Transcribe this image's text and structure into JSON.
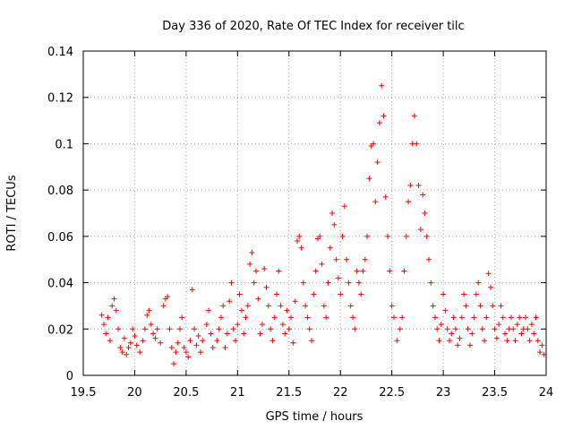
{
  "chart_data": {
    "type": "scatter",
    "title": "Day 336 of 2020, Rate Of TEC Index for receiver tilc",
    "xlabel": "GPS time / hours",
    "ylabel": "ROTI / TECUs",
    "xlim": [
      19.5,
      24
    ],
    "ylim": [
      0,
      0.14
    ],
    "xticks": [
      "19.5",
      "20",
      "20.5",
      "21",
      "21.5",
      "22",
      "22.5",
      "23",
      "23.5",
      "24"
    ],
    "yticks": [
      "0",
      "0.02",
      "0.04",
      "0.06",
      "0.08",
      "0.1",
      "0.12",
      "0.14"
    ],
    "grid": true,
    "marker": "+",
    "color": "#ff0000",
    "series": [
      {
        "name": "ROTI",
        "points": [
          [
            19.68,
            0.026
          ],
          [
            19.7,
            0.022
          ],
          [
            19.72,
            0.018
          ],
          [
            19.74,
            0.025
          ],
          [
            19.76,
            0.015
          ],
          [
            19.78,
            0.03
          ],
          [
            19.8,
            0.033
          ],
          [
            19.82,
            0.028
          ],
          [
            19.84,
            0.02
          ],
          [
            19.86,
            0.012
          ],
          [
            19.88,
            0.01
          ],
          [
            19.9,
            0.016
          ],
          [
            19.92,
            0.009
          ],
          [
            19.94,
            0.012
          ],
          [
            19.96,
            0.014
          ],
          [
            19.98,
            0.02
          ],
          [
            20.0,
            0.017
          ],
          [
            20.02,
            0.013
          ],
          [
            20.05,
            0.01
          ],
          [
            20.08,
            0.015
          ],
          [
            20.1,
            0.02
          ],
          [
            20.12,
            0.026
          ],
          [
            20.14,
            0.028
          ],
          [
            20.16,
            0.022
          ],
          [
            20.18,
            0.018
          ],
          [
            20.2,
            0.016
          ],
          [
            20.22,
            0.02
          ],
          [
            20.25,
            0.014
          ],
          [
            20.28,
            0.03
          ],
          [
            20.3,
            0.033
          ],
          [
            20.32,
            0.034
          ],
          [
            20.34,
            0.02
          ],
          [
            20.36,
            0.012
          ],
          [
            20.38,
            0.005
          ],
          [
            20.4,
            0.01
          ],
          [
            20.42,
            0.014
          ],
          [
            20.44,
            0.02
          ],
          [
            20.46,
            0.025
          ],
          [
            20.48,
            0.012
          ],
          [
            20.5,
            0.01
          ],
          [
            20.52,
            0.008
          ],
          [
            20.54,
            0.015
          ],
          [
            20.56,
            0.037
          ],
          [
            20.58,
            0.02
          ],
          [
            20.6,
            0.013
          ],
          [
            20.62,
            0.017
          ],
          [
            20.64,
            0.01
          ],
          [
            20.66,
            0.015
          ],
          [
            20.7,
            0.022
          ],
          [
            20.72,
            0.028
          ],
          [
            20.74,
            0.018
          ],
          [
            20.76,
            0.012
          ],
          [
            20.8,
            0.015
          ],
          [
            20.82,
            0.02
          ],
          [
            20.84,
            0.025
          ],
          [
            20.86,
            0.03
          ],
          [
            20.88,
            0.012
          ],
          [
            20.9,
            0.018
          ],
          [
            20.92,
            0.032
          ],
          [
            20.94,
            0.04
          ],
          [
            20.96,
            0.02
          ],
          [
            20.98,
            0.015
          ],
          [
            21.0,
            0.022
          ],
          [
            21.02,
            0.035
          ],
          [
            21.04,
            0.028
          ],
          [
            21.06,
            0.018
          ],
          [
            21.08,
            0.025
          ],
          [
            21.1,
            0.03
          ],
          [
            21.12,
            0.048
          ],
          [
            21.14,
            0.053
          ],
          [
            21.16,
            0.04
          ],
          [
            21.18,
            0.045
          ],
          [
            21.2,
            0.033
          ],
          [
            21.22,
            0.018
          ],
          [
            21.24,
            0.022
          ],
          [
            21.26,
            0.046
          ],
          [
            21.28,
            0.038
          ],
          [
            21.3,
            0.03
          ],
          [
            21.32,
            0.02
          ],
          [
            21.34,
            0.015
          ],
          [
            21.36,
            0.025
          ],
          [
            21.38,
            0.035
          ],
          [
            21.4,
            0.045
          ],
          [
            21.42,
            0.03
          ],
          [
            21.44,
            0.022
          ],
          [
            21.46,
            0.018
          ],
          [
            21.48,
            0.028
          ],
          [
            21.5,
            0.02
          ],
          [
            21.52,
            0.025
          ],
          [
            21.54,
            0.014
          ],
          [
            21.56,
            0.032
          ],
          [
            21.58,
            0.058
          ],
          [
            21.6,
            0.06
          ],
          [
            21.62,
            0.055
          ],
          [
            21.64,
            0.04
          ],
          [
            21.66,
            0.03
          ],
          [
            21.68,
            0.025
          ],
          [
            21.7,
            0.02
          ],
          [
            21.72,
            0.015
          ],
          [
            21.74,
            0.035
          ],
          [
            21.76,
            0.045
          ],
          [
            21.78,
            0.059
          ],
          [
            21.8,
            0.06
          ],
          [
            21.82,
            0.048
          ],
          [
            21.84,
            0.03
          ],
          [
            21.86,
            0.025
          ],
          [
            21.88,
            0.04
          ],
          [
            21.9,
            0.055
          ],
          [
            21.92,
            0.07
          ],
          [
            21.94,
            0.065
          ],
          [
            21.96,
            0.05
          ],
          [
            21.98,
            0.042
          ],
          [
            22.0,
            0.035
          ],
          [
            22.02,
            0.06
          ],
          [
            22.04,
            0.073
          ],
          [
            22.06,
            0.05
          ],
          [
            22.08,
            0.04
          ],
          [
            22.1,
            0.03
          ],
          [
            22.12,
            0.025
          ],
          [
            22.14,
            0.02
          ],
          [
            22.16,
            0.045
          ],
          [
            22.18,
            0.04
          ],
          [
            22.2,
            0.035
          ],
          [
            22.22,
            0.045
          ],
          [
            22.24,
            0.05
          ],
          [
            22.26,
            0.06
          ],
          [
            22.28,
            0.085
          ],
          [
            22.3,
            0.099
          ],
          [
            22.32,
            0.1
          ],
          [
            22.34,
            0.075
          ],
          [
            22.36,
            0.092
          ],
          [
            22.38,
            0.109
          ],
          [
            22.4,
            0.125
          ],
          [
            22.42,
            0.112
          ],
          [
            22.44,
            0.077
          ],
          [
            22.46,
            0.06
          ],
          [
            22.48,
            0.045
          ],
          [
            22.5,
            0.03
          ],
          [
            22.52,
            0.025
          ],
          [
            22.55,
            0.015
          ],
          [
            22.58,
            0.02
          ],
          [
            22.6,
            0.025
          ],
          [
            22.62,
            0.045
          ],
          [
            22.64,
            0.06
          ],
          [
            22.66,
            0.075
          ],
          [
            22.68,
            0.082
          ],
          [
            22.7,
            0.1
          ],
          [
            22.72,
            0.112
          ],
          [
            22.74,
            0.1
          ],
          [
            22.76,
            0.082
          ],
          [
            22.78,
            0.063
          ],
          [
            22.8,
            0.078
          ],
          [
            22.82,
            0.07
          ],
          [
            22.84,
            0.06
          ],
          [
            22.86,
            0.05
          ],
          [
            22.88,
            0.04
          ],
          [
            22.9,
            0.03
          ],
          [
            22.92,
            0.025
          ],
          [
            22.94,
            0.02
          ],
          [
            22.96,
            0.015
          ],
          [
            22.98,
            0.022
          ],
          [
            23.0,
            0.035
          ],
          [
            23.02,
            0.028
          ],
          [
            23.04,
            0.02
          ],
          [
            23.06,
            0.015
          ],
          [
            23.08,
            0.018
          ],
          [
            23.1,
            0.025
          ],
          [
            23.12,
            0.02
          ],
          [
            23.14,
            0.013
          ],
          [
            23.16,
            0.016
          ],
          [
            23.18,
            0.025
          ],
          [
            23.2,
            0.035
          ],
          [
            23.22,
            0.03
          ],
          [
            23.24,
            0.02
          ],
          [
            23.26,
            0.013
          ],
          [
            23.28,
            0.018
          ],
          [
            23.3,
            0.025
          ],
          [
            23.32,
            0.035
          ],
          [
            23.34,
            0.04
          ],
          [
            23.36,
            0.03
          ],
          [
            23.38,
            0.02
          ],
          [
            23.4,
            0.015
          ],
          [
            23.42,
            0.025
          ],
          [
            23.44,
            0.044
          ],
          [
            23.46,
            0.038
          ],
          [
            23.48,
            0.03
          ],
          [
            23.5,
            0.02
          ],
          [
            23.52,
            0.016
          ],
          [
            23.54,
            0.022
          ],
          [
            23.56,
            0.03
          ],
          [
            23.58,
            0.025
          ],
          [
            23.6,
            0.018
          ],
          [
            23.62,
            0.015
          ],
          [
            23.64,
            0.02
          ],
          [
            23.66,
            0.025
          ],
          [
            23.68,
            0.02
          ],
          [
            23.7,
            0.015
          ],
          [
            23.72,
            0.022
          ],
          [
            23.74,
            0.025
          ],
          [
            23.76,
            0.018
          ],
          [
            23.78,
            0.02
          ],
          [
            23.8,
            0.025
          ],
          [
            23.82,
            0.02
          ],
          [
            23.84,
            0.015
          ],
          [
            23.86,
            0.022
          ],
          [
            23.88,
            0.018
          ],
          [
            23.9,
            0.025
          ],
          [
            23.92,
            0.015
          ],
          [
            23.94,
            0.01
          ],
          [
            23.96,
            0.013
          ],
          [
            23.98,
            0.009
          ]
        ]
      }
    ]
  }
}
